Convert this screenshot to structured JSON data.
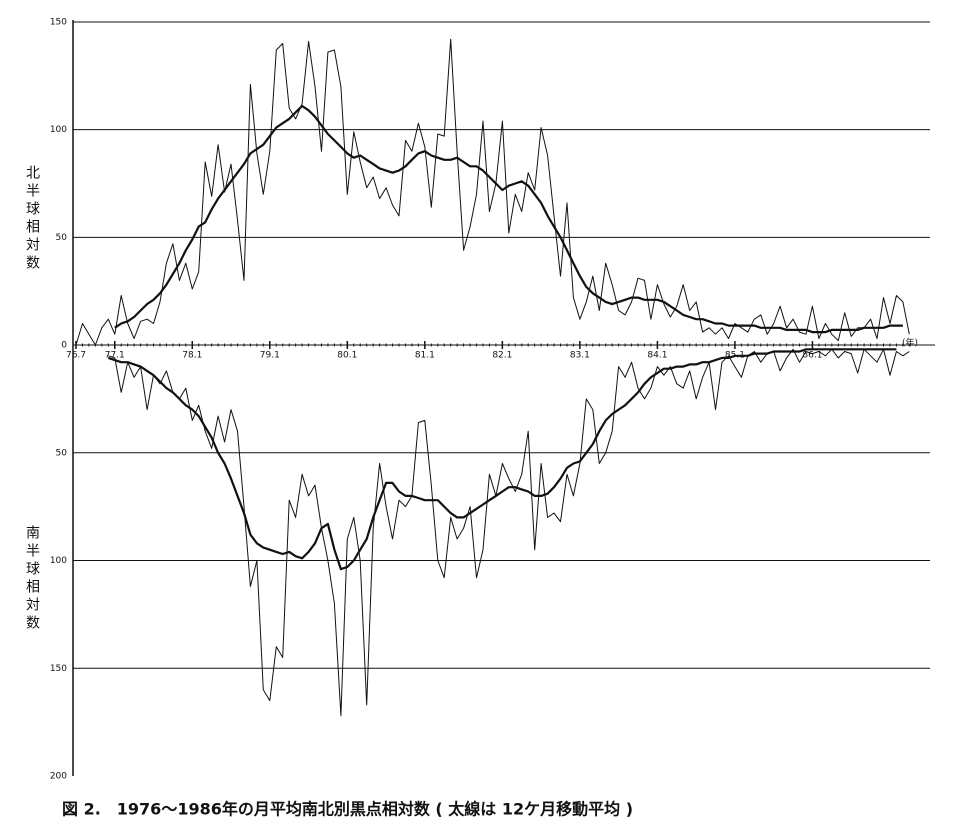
{
  "chart_data": {
    "type": "line",
    "title": "図 2.　1976～1986年の月平均南北別黒点相対数 ( 太線は 12ケ月移動平均 )",
    "ylabel": "北半球相対数",
    "y2label": "南半球相対数",
    "xlabel": "(年)",
    "x": [
      "76.7",
      "76.8",
      "76.9",
      "76.10",
      "76.11",
      "76.12",
      "77.1",
      "77.2",
      "77.3",
      "77.4",
      "77.5",
      "77.6",
      "77.7",
      "77.8",
      "77.9",
      "77.10",
      "77.11",
      "77.12",
      "78.1",
      "78.2",
      "78.3",
      "78.4",
      "78.5",
      "78.6",
      "78.7",
      "78.8",
      "78.9",
      "78.10",
      "78.11",
      "78.12",
      "79.1",
      "79.2",
      "79.3",
      "79.4",
      "79.5",
      "79.6",
      "79.7",
      "79.8",
      "79.9",
      "79.10",
      "79.11",
      "79.12",
      "80.1",
      "80.2",
      "80.3",
      "80.4",
      "80.5",
      "80.6",
      "80.7",
      "80.8",
      "80.9",
      "80.10",
      "80.11",
      "80.12",
      "81.1",
      "81.2",
      "81.3",
      "81.4",
      "81.5",
      "81.6",
      "81.7",
      "81.8",
      "81.9",
      "81.10",
      "81.11",
      "81.12",
      "82.1",
      "82.2",
      "82.3",
      "82.4",
      "82.5",
      "82.6",
      "82.7",
      "82.8",
      "82.9",
      "82.10",
      "82.11",
      "82.12",
      "83.1",
      "83.2",
      "83.3",
      "83.4",
      "83.5",
      "83.6",
      "83.7",
      "83.8",
      "83.9",
      "83.10",
      "83.11",
      "83.12",
      "84.1",
      "84.2",
      "84.3",
      "84.4",
      "84.5",
      "84.6",
      "84.7",
      "84.8",
      "84.9",
      "84.10",
      "84.11",
      "84.12",
      "85.1",
      "85.2",
      "85.3",
      "85.4",
      "85.5",
      "85.6",
      "85.7",
      "85.8",
      "85.9",
      "85.10",
      "85.11",
      "85.12",
      "86.1",
      "86.2",
      "86.3",
      "86.4",
      "86.5",
      "86.6",
      "86.7",
      "86.8",
      "86.9",
      "86.10",
      "86.11",
      "86.12",
      "87.1",
      "87.2",
      "87.3",
      "87.4"
    ],
    "xticks": [
      "76.7",
      "77.1",
      "78.1",
      "79.1",
      "80.1",
      "81.1",
      "82.1",
      "83.1",
      "84.1",
      "85.1",
      "86.1"
    ],
    "ylim": [
      0,
      150
    ],
    "yticks": [
      0,
      50,
      100,
      150
    ],
    "y2lim": [
      0,
      200
    ],
    "y2ticks": [
      50,
      100,
      150,
      200
    ],
    "y2_inverted": true,
    "grid": true,
    "series": [
      {
        "color": "#111111",
        "width": 1,
        "values": [
          0,
          10,
          5,
          0,
          8,
          12,
          5,
          23,
          10,
          3,
          11,
          12,
          10,
          20,
          38,
          47,
          30,
          38,
          26,
          34,
          85,
          69,
          93,
          71,
          84,
          58,
          30,
          121,
          89,
          70,
          90,
          137,
          140,
          110,
          105,
          112,
          141,
          120,
          90,
          136,
          137,
          120,
          70,
          99,
          85,
          73,
          78,
          68,
          73,
          65,
          60,
          95,
          90,
          103,
          92,
          64,
          98,
          97,
          142,
          90,
          44,
          55,
          70,
          104,
          62,
          75,
          104,
          52,
          70,
          62,
          80,
          72,
          101,
          88,
          60,
          32,
          66,
          22,
          12,
          20,
          32,
          16,
          38,
          28,
          16,
          14,
          20,
          31,
          30,
          12,
          28,
          19,
          13,
          18,
          28,
          16,
          20,
          6,
          8,
          5,
          8,
          3,
          10,
          8,
          6,
          12,
          14,
          5,
          10,
          18,
          8,
          12,
          6,
          5,
          18,
          3,
          10,
          5,
          2,
          15,
          4,
          8,
          8,
          12,
          3,
          22,
          10,
          23,
          20,
          5
        ]
      },
      {
        "color": "#111111",
        "width": 2.2,
        "values": [
          null,
          null,
          null,
          null,
          null,
          null,
          8,
          10,
          11,
          13,
          16,
          19,
          21,
          24,
          28,
          33,
          38,
          44,
          49,
          55,
          57,
          63,
          68,
          72,
          76,
          80,
          84,
          89,
          91,
          93,
          97,
          101,
          103,
          105,
          108,
          111,
          109,
          106,
          102,
          98,
          95,
          92,
          89,
          87,
          88,
          86,
          84,
          82,
          81,
          80,
          81,
          83,
          86,
          89,
          90,
          88,
          87,
          86,
          86,
          87,
          85,
          83,
          83,
          81,
          78,
          75,
          72,
          74,
          75,
          76,
          74,
          70,
          66,
          60,
          55,
          50,
          44,
          38,
          32,
          27,
          24,
          22,
          20,
          19,
          20,
          21,
          22,
          22,
          21,
          21,
          21,
          20,
          18,
          16,
          14,
          13,
          12,
          12,
          11,
          10,
          10,
          9,
          9,
          9,
          9,
          9,
          8,
          8,
          8,
          8,
          7,
          7,
          7,
          7,
          6,
          6,
          6,
          7,
          7,
          7,
          7,
          7,
          8,
          8,
          8,
          8,
          9,
          9,
          9,
          null
        ]
      },
      {
        "color": "#111111",
        "width": 1,
        "axis": "y2",
        "values": [
          null,
          null,
          null,
          null,
          null,
          5,
          6,
          22,
          8,
          15,
          10,
          30,
          14,
          18,
          12,
          22,
          25,
          20,
          35,
          28,
          40,
          48,
          33,
          45,
          30,
          40,
          75,
          112,
          100,
          160,
          165,
          140,
          145,
          72,
          80,
          60,
          70,
          65,
          85,
          100,
          120,
          172,
          90,
          80,
          100,
          167,
          85,
          55,
          75,
          90,
          72,
          75,
          70,
          36,
          35,
          65,
          100,
          108,
          80,
          90,
          85,
          75,
          108,
          95,
          60,
          70,
          55,
          62,
          68,
          60,
          40,
          95,
          55,
          80,
          78,
          82,
          60,
          70,
          55,
          25,
          30,
          55,
          50,
          40,
          10,
          15,
          8,
          20,
          25,
          20,
          10,
          14,
          10,
          18,
          20,
          12,
          25,
          15,
          8,
          30,
          8,
          5,
          10,
          15,
          5,
          3,
          8,
          4,
          3,
          12,
          6,
          2,
          8,
          3,
          4,
          3,
          5,
          2,
          6,
          3,
          4,
          13,
          2,
          5,
          8,
          2,
          14,
          3,
          5,
          3
        ]
      },
      {
        "color": "#111111",
        "width": 2.2,
        "axis": "y2",
        "values": [
          null,
          null,
          null,
          null,
          null,
          6,
          7,
          8,
          8,
          9,
          10,
          12,
          14,
          17,
          20,
          22,
          25,
          28,
          30,
          33,
          38,
          43,
          50,
          55,
          62,
          70,
          78,
          88,
          92,
          94,
          95,
          96,
          97,
          96,
          98,
          99,
          96,
          92,
          85,
          83,
          95,
          104,
          103,
          100,
          95,
          90,
          80,
          72,
          64,
          64,
          68,
          70,
          70,
          71,
          72,
          72,
          72,
          75,
          78,
          80,
          80,
          78,
          76,
          74,
          72,
          70,
          68,
          66,
          66,
          67,
          68,
          70,
          70,
          69,
          66,
          62,
          57,
          55,
          54,
          50,
          46,
          40,
          35,
          32,
          30,
          28,
          25,
          22,
          18,
          15,
          13,
          11,
          11,
          10,
          10,
          9,
          9,
          8,
          8,
          7,
          6,
          6,
          5,
          5,
          5,
          4,
          4,
          4,
          3,
          3,
          3,
          3,
          3,
          2,
          2,
          2,
          2,
          2,
          2,
          2,
          2,
          2,
          2,
          2,
          2,
          2,
          2,
          2,
          null,
          null
        ]
      }
    ]
  }
}
